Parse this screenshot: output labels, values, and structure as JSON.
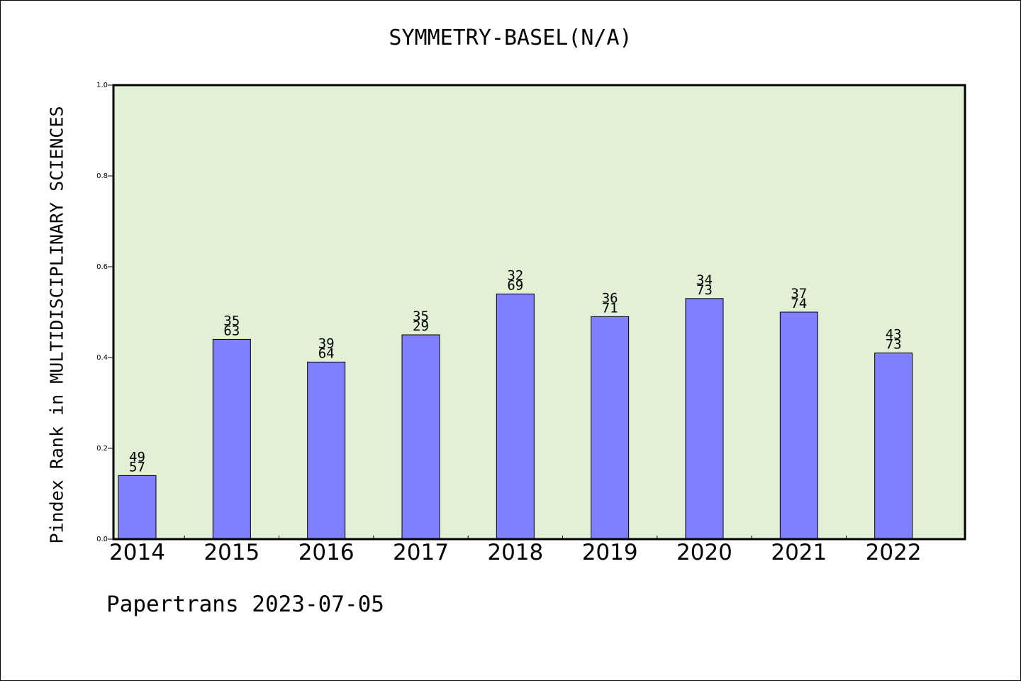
{
  "chart_data": {
    "type": "bar",
    "title": "SYMMETRY-BASEL(N/A)",
    "xlabel": "",
    "ylabel": "Pindex Rank in MULTIDISCIPLINARY SCIENCES",
    "categories": [
      "2014",
      "2015",
      "2016",
      "2017",
      "2018",
      "2019",
      "2020",
      "2021",
      "2022"
    ],
    "values": [
      0.14,
      0.44,
      0.39,
      0.45,
      0.54,
      0.49,
      0.53,
      0.5,
      0.41
    ],
    "bar_labels": [
      [
        "49",
        "57"
      ],
      [
        "35",
        "63"
      ],
      [
        "39",
        "64"
      ],
      [
        "35",
        "29"
      ],
      [
        "32",
        "69"
      ],
      [
        "36",
        "71"
      ],
      [
        "34",
        "73"
      ],
      [
        "37",
        "74"
      ],
      [
        "43",
        "73"
      ]
    ],
    "ylim": [
      0.0,
      1.0
    ],
    "yticks": [
      "0.0",
      "0.2",
      "0.4",
      "0.6",
      "0.8",
      "1.0"
    ],
    "grid": false,
    "colors": {
      "plot_background": "#e2f0d6",
      "bar_fill": "#8080ff",
      "bar_edge": "#000000"
    }
  },
  "footer": "Papertrans 2023-07-05"
}
